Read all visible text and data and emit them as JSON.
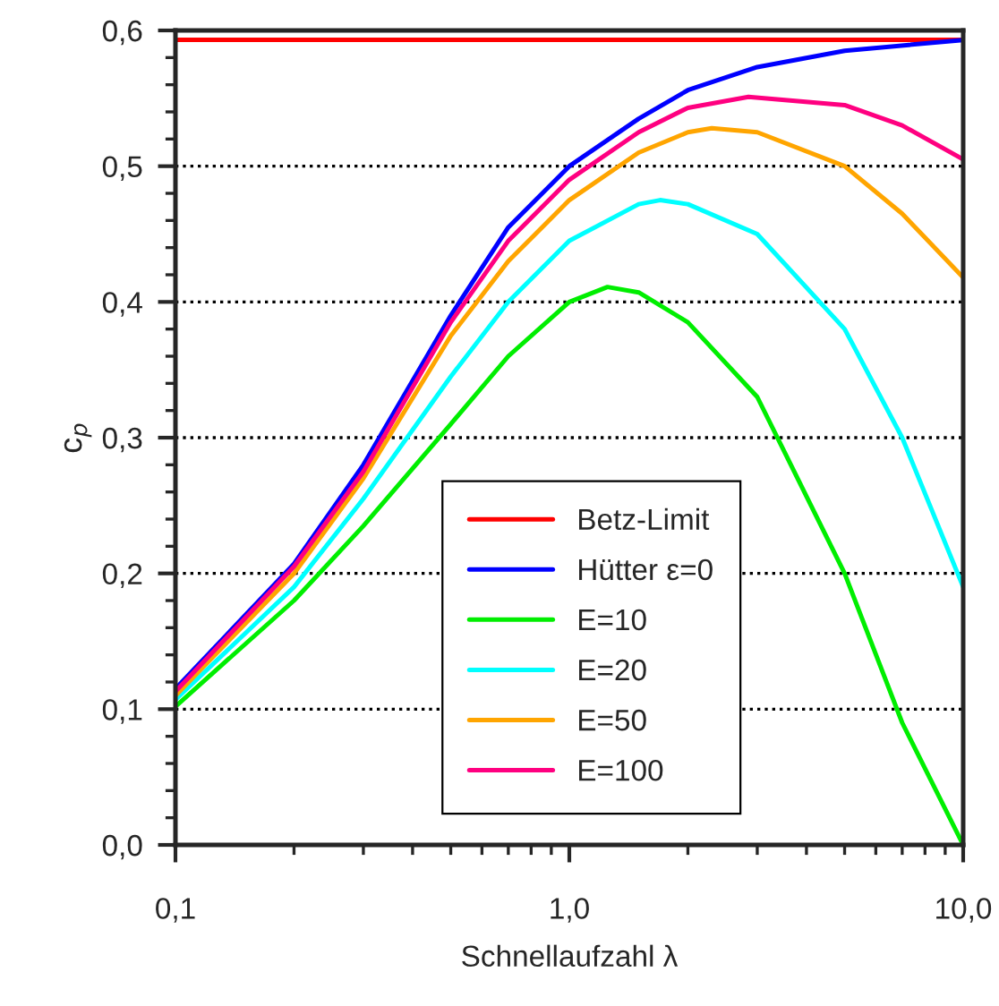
{
  "chart_data": {
    "type": "line",
    "xlabel": "Schnellaufzahl λ",
    "ylabel": "c$_{p}$",
    "log": "x",
    "xlim": [
      0.1,
      10
    ],
    "xticks": [
      {
        "value": 0.1,
        "label": "0,1"
      },
      {
        "value": 1,
        "label": "1,0"
      },
      {
        "value": 10,
        "label": "10,0"
      }
    ],
    "ylim": [
      0,
      0.6
    ],
    "yticks": [
      {
        "value": 0,
        "label": "0,0"
      },
      {
        "value": 0.1,
        "label": "0,1"
      },
      {
        "value": 0.2,
        "label": "0,2"
      },
      {
        "value": 0.3,
        "label": "0,3"
      },
      {
        "value": 0.4,
        "label": "0,4"
      },
      {
        "value": 0.5,
        "label": "0,5"
      },
      {
        "value": 0.6,
        "label": "0,6"
      }
    ],
    "grid": "y",
    "legend": "bottom",
    "marker": "none",
    "line_style": "solid",
    "series": [
      {
        "name": "Betz-Limit",
        "color": "#ff0000",
        "x": [
          0.1,
          10
        ],
        "values": [
          0.593,
          0.593
        ]
      },
      {
        "name": "Hütter ε=0",
        "color": "#0000ff",
        "x": [
          0.1,
          0.2,
          0.3,
          0.5,
          0.7,
          1,
          1.5,
          2,
          3,
          5,
          10
        ],
        "values": [
          0.115,
          0.207,
          0.28,
          0.39,
          0.455,
          0.5,
          0.535,
          0.556,
          0.573,
          0.585,
          0.593
        ]
      },
      {
        "name": "E=10",
        "color": "#00ee00",
        "x": [
          0.1,
          0.2,
          0.3,
          0.5,
          0.7,
          1,
          1.25,
          1.5,
          2,
          3,
          5,
          7,
          10
        ],
        "values": [
          0.102,
          0.18,
          0.235,
          0.31,
          0.36,
          0.4,
          0.411,
          0.407,
          0.385,
          0.33,
          0.2,
          0.09,
          0.0
        ]
      },
      {
        "name": "E=20",
        "color": "#00ffff",
        "x": [
          0.1,
          0.2,
          0.3,
          0.5,
          0.7,
          1,
          1.5,
          1.7,
          2,
          3,
          5,
          7,
          10
        ],
        "values": [
          0.107,
          0.19,
          0.255,
          0.345,
          0.4,
          0.445,
          0.472,
          0.475,
          0.472,
          0.45,
          0.38,
          0.3,
          0.19
        ]
      },
      {
        "name": "E=50",
        "color": "#ffa500",
        "x": [
          0.1,
          0.2,
          0.3,
          0.5,
          0.7,
          1,
          1.5,
          2,
          2.3,
          3,
          5,
          7,
          10
        ],
        "values": [
          0.11,
          0.2,
          0.27,
          0.375,
          0.43,
          0.475,
          0.51,
          0.525,
          0.528,
          0.525,
          0.5,
          0.465,
          0.418
        ]
      },
      {
        "name": "E=100",
        "color": "#ff0080",
        "x": [
          0.1,
          0.2,
          0.3,
          0.5,
          0.7,
          1,
          1.5,
          2,
          2.85,
          5,
          7,
          10
        ],
        "values": [
          0.113,
          0.205,
          0.275,
          0.385,
          0.445,
          0.49,
          0.525,
          0.543,
          0.551,
          0.545,
          0.53,
          0.505
        ]
      }
    ]
  }
}
